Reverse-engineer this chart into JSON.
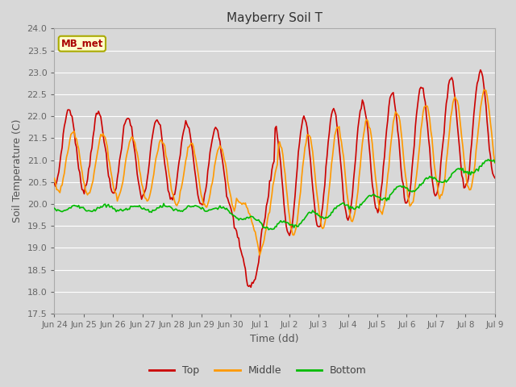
{
  "title": "Mayberry Soil T",
  "xlabel": "Time (dd)",
  "ylabel": "Soil Temperature (C)",
  "ylim": [
    17.5,
    24.0
  ],
  "yticks": [
    17.5,
    18.0,
    18.5,
    19.0,
    19.5,
    20.0,
    20.5,
    21.0,
    21.5,
    22.0,
    22.5,
    23.0,
    23.5,
    24.0
  ],
  "colors": {
    "Top": "#cc0000",
    "Middle": "#ff9900",
    "Bottom": "#00bb00"
  },
  "legend_label": "MB_met",
  "legend_box_color": "#ffffcc",
  "legend_box_edge_color": "#aaaa00",
  "plot_bg_color": "#d8d8d8",
  "fig_bg_color": "#d8d8d8",
  "grid_color": "#ffffff",
  "tick_labels": [
    "Jun 24",
    "Jun 25",
    "Jun 26",
    "Jun 27",
    "Jun 28",
    "Jun 29",
    "Jun 30",
    "Jul 1",
    "Jul 2",
    "Jul 3",
    "Jul 4",
    "Jul 5",
    "Jul 6",
    "Jul 7",
    "Jul 8",
    "Jul 9"
  ],
  "num_points": 400
}
